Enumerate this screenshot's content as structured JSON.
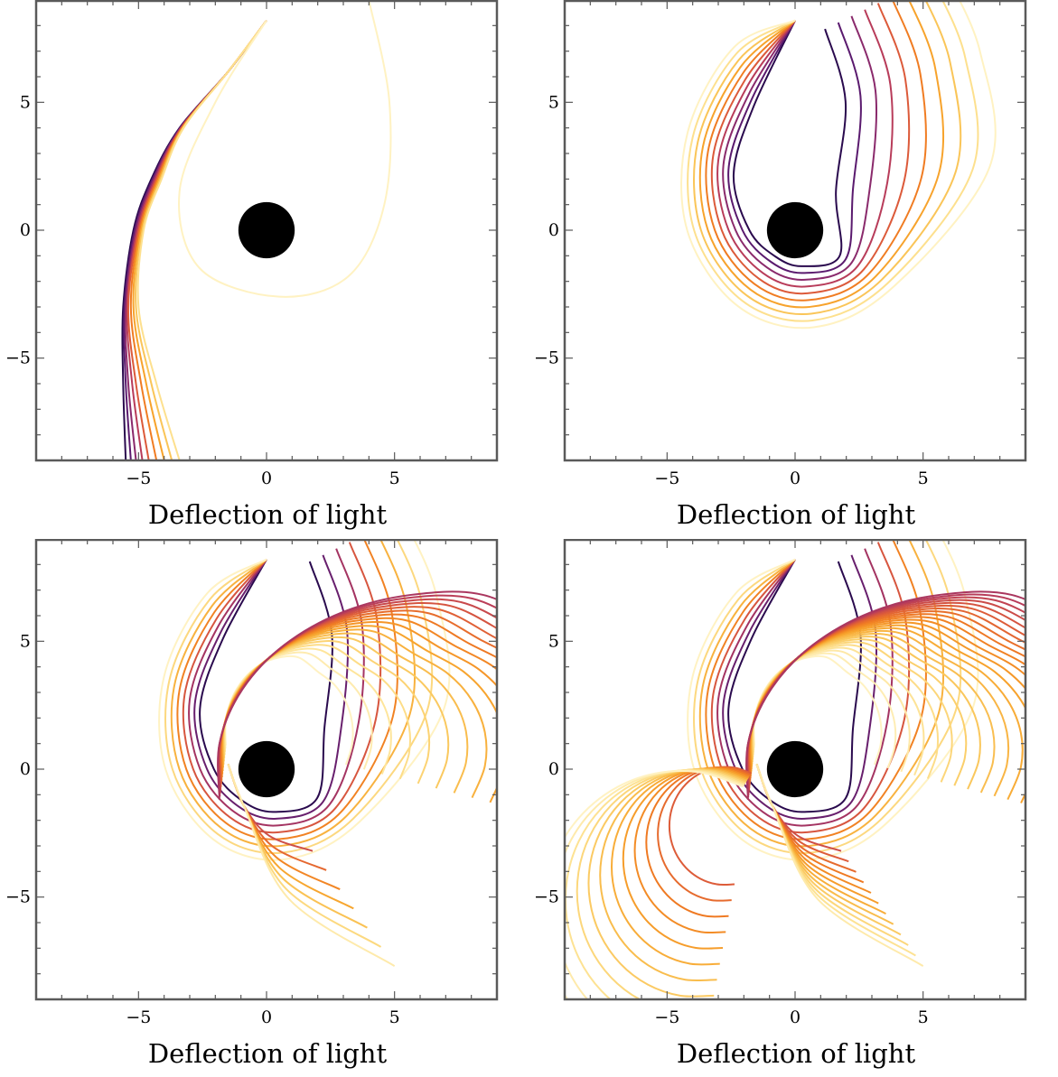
{
  "chart_data": [
    {
      "type": "line",
      "title": "",
      "caption": "Deflection of light",
      "xlim": [
        -9,
        9
      ],
      "ylim": [
        -9,
        9
      ],
      "xticks": [
        -5,
        0,
        5
      ],
      "yticks": [
        -5,
        0,
        5
      ],
      "xtick_labels": [
        "−5",
        "0",
        "5"
      ],
      "ytick_labels": [
        "−5",
        "0",
        "5"
      ],
      "black_hole": {
        "center": [
          0,
          0
        ],
        "radius": 1.1,
        "color": "#000000"
      },
      "colormap": [
        "#2a0a4e",
        "#5a1a6e",
        "#8a2a6c",
        "#b83c5a",
        "#dc5a3a",
        "#f07c22",
        "#f7a32c",
        "#fac558",
        "#fde08e",
        "#fff2c2"
      ],
      "families": [
        {
          "x0": -5.4,
          "dx": 0.22,
          "curves": [
            [
              [
                -5.5,
                -9
              ],
              [
                -5.6,
                -6
              ],
              [
                -5.6,
                -3
              ],
              [
                -5.2,
                0
              ],
              [
                -4.5,
                2
              ],
              [
                -3.4,
                4
              ],
              [
                -1.5,
                6.2
              ],
              [
                0,
                8.2
              ]
            ],
            [
              [
                -5.3,
                -9
              ],
              [
                -5.5,
                -6
              ],
              [
                -5.55,
                -3
              ],
              [
                -5.15,
                0
              ],
              [
                -4.45,
                2
              ],
              [
                -3.38,
                4
              ],
              [
                -1.5,
                6.2
              ],
              [
                0,
                8.2
              ]
            ],
            [
              [
                -5.1,
                -9
              ],
              [
                -5.4,
                -6
              ],
              [
                -5.5,
                -3
              ],
              [
                -5.1,
                0
              ],
              [
                -4.4,
                2
              ],
              [
                -3.36,
                4
              ],
              [
                -1.5,
                6.2
              ],
              [
                0,
                8.2
              ]
            ],
            [
              [
                -4.85,
                -9
              ],
              [
                -5.25,
                -6
              ],
              [
                -5.45,
                -3
              ],
              [
                -5.05,
                0
              ],
              [
                -4.35,
                2
              ],
              [
                -3.34,
                4
              ],
              [
                -1.5,
                6.2
              ],
              [
                0,
                8.2
              ]
            ],
            [
              [
                -4.6,
                -9
              ],
              [
                -5.1,
                -6
              ],
              [
                -5.4,
                -3
              ],
              [
                -5.0,
                0
              ],
              [
                -4.3,
                2
              ],
              [
                -3.32,
                4
              ],
              [
                -1.5,
                6.2
              ],
              [
                0,
                8.2
              ]
            ],
            [
              [
                -4.3,
                -9
              ],
              [
                -4.9,
                -6
              ],
              [
                -5.3,
                -3
              ],
              [
                -4.95,
                0
              ],
              [
                -4.25,
                2
              ],
              [
                -3.3,
                4
              ],
              [
                -1.5,
                6.2
              ],
              [
                0,
                8.2
              ]
            ],
            [
              [
                -4.0,
                -9
              ],
              [
                -4.7,
                -6
              ],
              [
                -5.2,
                -3
              ],
              [
                -4.9,
                0
              ],
              [
                -4.2,
                2
              ],
              [
                -3.28,
                4
              ],
              [
                -1.5,
                6.2
              ],
              [
                0,
                8.2
              ]
            ],
            [
              [
                -3.7,
                -9
              ],
              [
                -4.5,
                -6
              ],
              [
                -5.1,
                -3
              ],
              [
                -4.85,
                0
              ],
              [
                -4.15,
                2
              ],
              [
                -3.26,
                4
              ],
              [
                -1.5,
                6.2
              ],
              [
                0,
                8.2
              ]
            ],
            [
              [
                -3.4,
                -9
              ],
              [
                -4.3,
                -6
              ],
              [
                -5.0,
                -3
              ],
              [
                -4.8,
                0
              ],
              [
                -4.1,
                2
              ],
              [
                -3.24,
                4
              ],
              [
                -1.5,
                6.2
              ],
              [
                0,
                8.2
              ]
            ],
            [
              [
                4,
                9
              ],
              [
                4.8,
                5
              ],
              [
                4.6,
                1
              ],
              [
                3.2,
                -1.8
              ],
              [
                0.5,
                -2.6
              ],
              [
                -2.6,
                -1.5
              ],
              [
                -3.4,
                1.5
              ],
              [
                -2,
                5
              ],
              [
                0,
                8.2
              ]
            ]
          ]
        }
      ]
    },
    {
      "type": "line",
      "title": "",
      "caption": "Deflection of light",
      "xlim": [
        -9,
        9
      ],
      "ylim": [
        -9,
        9
      ],
      "xticks": [
        -5,
        0,
        5
      ],
      "yticks": [
        -5,
        0,
        5
      ],
      "xtick_labels": [
        "−5",
        "0",
        "5"
      ],
      "ytick_labels": [
        "−5",
        "0",
        "5"
      ],
      "black_hole": {
        "center": [
          0,
          0
        ],
        "radius": 1.1,
        "color": "#000000"
      },
      "colormap": [
        "#2a0a4e",
        "#5a1a6e",
        "#8a2a6c",
        "#b83c5a",
        "#dc5a3a",
        "#f07c22",
        "#f7a32c",
        "#fac558",
        "#fde08e",
        "#fff2c2"
      ],
      "loops": {
        "count": 10,
        "base": [
          [
            0,
            8.2
          ],
          [
            -2,
            6
          ],
          [
            -3.3,
            3
          ],
          [
            -3,
            0
          ],
          [
            -1.5,
            -2
          ],
          [
            0.5,
            -2.6
          ],
          [
            2.8,
            -1.6
          ],
          [
            4.6,
            2
          ],
          [
            4.6,
            6
          ],
          [
            3.5,
            9
          ]
        ],
        "spread": 0.3
      }
    },
    {
      "type": "line",
      "title": "",
      "caption": "Deflection of light",
      "xlim": [
        -9,
        9
      ],
      "ylim": [
        -9,
        9
      ],
      "xticks": [
        -5,
        0,
        5
      ],
      "yticks": [
        -5,
        0,
        5
      ],
      "xtick_labels": [
        "−5",
        "0",
        "5"
      ],
      "ytick_labels": [
        "−5",
        "0",
        "5"
      ],
      "black_hole": {
        "center": [
          0,
          0
        ],
        "radius": 1.1,
        "color": "#000000"
      },
      "colormap": [
        "#2a0a4e",
        "#5a1a6e",
        "#8a2a6c",
        "#b83c5a",
        "#dc5a3a",
        "#f07c22",
        "#f7a32c",
        "#fac558",
        "#fde08e",
        "#fff2c2"
      ],
      "loops": {
        "count": 8,
        "base": [
          [
            0,
            8.2
          ],
          [
            -2,
            6
          ],
          [
            -3.3,
            3
          ],
          [
            -3,
            0
          ],
          [
            -1.5,
            -2
          ],
          [
            0.5,
            -2.6
          ],
          [
            2.8,
            -1.6
          ],
          [
            4.6,
            2
          ],
          [
            4.6,
            6
          ],
          [
            3.5,
            9
          ]
        ],
        "spread": 0.3
      },
      "fan": {
        "count": 18,
        "pivot": [
          -1.5,
          0.2
        ]
      },
      "tails": {
        "count": 7,
        "pivot": [
          -1.5,
          0.2
        ]
      }
    },
    {
      "type": "line",
      "title": "",
      "caption": "Deflection of light",
      "xlim": [
        -9,
        9
      ],
      "ylim": [
        -9,
        9
      ],
      "xticks": [
        -5,
        0,
        5
      ],
      "yticks": [
        -5,
        0,
        5
      ],
      "xtick_labels": [
        "−5",
        "0",
        "5"
      ],
      "ytick_labels": [
        "−5",
        "0",
        "5"
      ],
      "black_hole": {
        "center": [
          0,
          0
        ],
        "radius": 1.1,
        "color": "#000000"
      },
      "colormap": [
        "#2a0a4e",
        "#5a1a6e",
        "#8a2a6c",
        "#b83c5a",
        "#dc5a3a",
        "#f07c22",
        "#f7a32c",
        "#fac558",
        "#fde08e",
        "#fff2c2"
      ],
      "loops": {
        "count": 8,
        "base": [
          [
            0,
            8.2
          ],
          [
            -2,
            6
          ],
          [
            -3.3,
            3
          ],
          [
            -3,
            0
          ],
          [
            -1.5,
            -2
          ],
          [
            0.5,
            -2.6
          ],
          [
            2.8,
            -1.6
          ],
          [
            4.6,
            2
          ],
          [
            4.6,
            6
          ],
          [
            3.5,
            9
          ]
        ],
        "spread": 0.3
      },
      "fan": {
        "count": 24,
        "pivot": [
          -1.5,
          0.2
        ]
      },
      "tails": {
        "count": 12,
        "pivot": [
          -1.5,
          0.2
        ]
      },
      "lower_loops": {
        "count": 12,
        "pivot": [
          -1.5,
          0.2
        ]
      }
    }
  ]
}
